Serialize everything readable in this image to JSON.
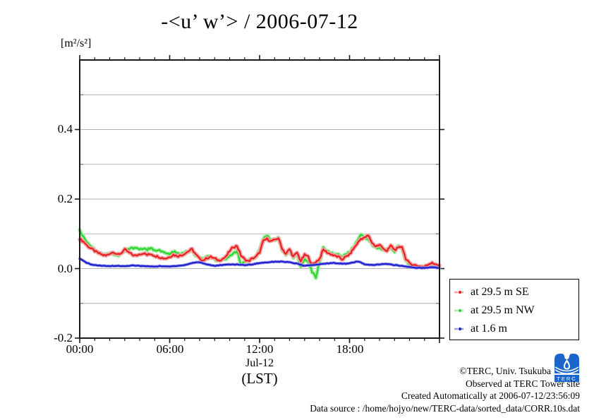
{
  "title": "-<u’ w’> / 2006-07-12",
  "y_unit": "[m²/s²]",
  "x_axis": {
    "major_tick_labels": [
      "00:00",
      "06:00",
      "12:00",
      "18:00"
    ],
    "date_label": "Jul-12",
    "tz_label": "(LST)"
  },
  "y_axis": {
    "tick_labels": [
      "-0.2",
      "0.0",
      "0.2",
      "0.4"
    ],
    "tick_values": [
      -0.2,
      0.0,
      0.2,
      0.4
    ]
  },
  "legend": {
    "items": [
      {
        "label": "at 29.5 m SE",
        "color": "#e82020",
        "halo": "#f5a5a5"
      },
      {
        "label": "at 29.5 m NW",
        "color": "#2ed32e",
        "halo": "#a6eda6"
      },
      {
        "label": "at 1.6 m",
        "color": "#2222d0",
        "halo": "#9c9ce8"
      }
    ]
  },
  "footer": {
    "copyright": "©TERC, Univ. Tsukuba",
    "observed": "Observed at TERC Tower site",
    "created": "Created Automatically at 2006-07-12/23:56:09",
    "datasource": "Data source : /home/hojyo/new/TERC-data/sorted_data/CORR.10s.dat",
    "logo_text": "TERC"
  },
  "colors": {
    "frame": "#1a1a1a",
    "grid": "#b4b4b4",
    "logo_blue": "#1a66cc"
  },
  "chart_data": {
    "type": "line",
    "title": "-<u’ w’> / 2006-07-12",
    "ylabel": "[m²/s²]",
    "xlabel": "Jul-12 (LST)",
    "x_unit": "hours LST on 2006-07-12",
    "x_start": 0,
    "x_end": 24,
    "x_step_hours": 0.25,
    "xlim_hours": [
      0,
      24
    ],
    "ylim": [
      -0.2,
      0.6
    ],
    "yticks_labeled": [
      -0.2,
      0.0,
      0.2,
      0.4
    ],
    "gridlines": [
      -0.1,
      0.0,
      0.1,
      0.2,
      0.3,
      0.4,
      0.5
    ],
    "xticks_major_hours": [
      0,
      6,
      12,
      18,
      24
    ],
    "xticks_minor_step_hours": 1,
    "grid": true,
    "legend_position": "outside lower right",
    "series": [
      {
        "name": "at 29.5 m SE",
        "color": "#e82020",
        "halo": "#f5a5a5",
        "values": [
          0.085,
          0.078,
          0.066,
          0.058,
          0.05,
          0.044,
          0.04,
          0.037,
          0.043,
          0.048,
          0.04,
          0.044,
          0.055,
          0.047,
          0.04,
          0.037,
          0.042,
          0.044,
          0.039,
          0.042,
          0.037,
          0.034,
          0.031,
          0.029,
          0.034,
          0.04,
          0.036,
          0.038,
          0.043,
          0.05,
          0.056,
          0.04,
          0.028,
          0.024,
          0.03,
          0.034,
          0.029,
          0.024,
          0.027,
          0.034,
          0.05,
          0.062,
          0.065,
          0.038,
          0.027,
          0.021,
          0.029,
          0.034,
          0.046,
          0.08,
          0.086,
          0.079,
          0.082,
          0.088,
          0.058,
          0.042,
          0.056,
          0.034,
          0.046,
          0.021,
          0.04,
          0.034,
          0.011,
          0.019,
          0.028,
          0.055,
          0.046,
          0.041,
          0.037,
          0.034,
          0.026,
          0.034,
          0.041,
          0.056,
          0.071,
          0.086,
          0.089,
          0.095,
          0.074,
          0.064,
          0.068,
          0.059,
          0.049,
          0.067,
          0.054,
          0.059,
          0.064,
          0.028,
          0.015,
          0.011,
          0.008,
          0.006,
          0.005,
          0.012,
          0.018,
          0.011,
          0.01
        ]
      },
      {
        "name": "at 29.5 m NW",
        "color": "#2ed32e",
        "halo": "#a6eda6",
        "values": [
          0.11,
          0.092,
          0.076,
          0.064,
          0.054,
          0.047,
          0.042,
          0.039,
          0.045,
          0.041,
          0.037,
          0.042,
          0.05,
          0.056,
          0.059,
          0.061,
          0.055,
          0.058,
          0.054,
          0.058,
          0.052,
          0.055,
          0.048,
          0.044,
          0.041,
          0.048,
          0.044,
          0.04,
          0.046,
          0.05,
          0.052,
          0.037,
          0.03,
          0.027,
          0.034,
          0.031,
          0.027,
          0.021,
          0.024,
          0.028,
          0.036,
          0.046,
          0.05,
          0.012,
          0.02,
          0.024,
          0.028,
          0.033,
          0.052,
          0.086,
          0.096,
          0.084,
          0.08,
          0.091,
          0.054,
          0.039,
          0.05,
          0.029,
          0.04,
          0.005,
          0.03,
          0.019,
          -0.01,
          -0.026,
          0.02,
          0.061,
          0.05,
          0.044,
          0.04,
          0.042,
          0.034,
          0.04,
          0.046,
          0.061,
          0.081,
          0.096,
          0.091,
          0.084,
          0.07,
          0.061,
          0.06,
          0.054,
          0.055,
          0.059,
          0.049,
          0.066,
          0.059,
          0.024,
          0.012,
          0.008,
          0.005,
          0.004,
          0.005,
          0.008,
          0.01,
          0.008,
          0.008
        ]
      },
      {
        "name": "at 1.6 m",
        "color": "#2222d0",
        "halo": "#9c9ce8",
        "values": [
          0.028,
          0.022,
          0.016,
          0.012,
          0.01,
          0.009,
          0.008,
          0.007,
          0.007,
          0.008,
          0.008,
          0.007,
          0.007,
          0.008,
          0.009,
          0.008,
          0.008,
          0.007,
          0.007,
          0.006,
          0.006,
          0.007,
          0.007,
          0.006,
          0.006,
          0.007,
          0.008,
          0.009,
          0.01,
          0.013,
          0.016,
          0.018,
          0.018,
          0.015,
          0.012,
          0.01,
          0.008,
          0.009,
          0.01,
          0.011,
          0.012,
          0.012,
          0.012,
          0.011,
          0.01,
          0.011,
          0.012,
          0.014,
          0.016,
          0.017,
          0.018,
          0.019,
          0.02,
          0.02,
          0.02,
          0.019,
          0.018,
          0.016,
          0.014,
          0.011,
          0.008,
          0.009,
          0.01,
          0.011,
          0.012,
          0.014,
          0.015,
          0.016,
          0.016,
          0.015,
          0.014,
          0.014,
          0.015,
          0.018,
          0.02,
          0.018,
          0.012,
          0.011,
          0.01,
          0.011,
          0.012,
          0.013,
          0.013,
          0.012,
          0.01,
          0.009,
          0.008,
          0.006,
          0.005,
          0.003,
          0.002,
          0.002,
          0.002,
          0.003,
          0.004,
          0.003,
          0.002
        ]
      }
    ]
  }
}
